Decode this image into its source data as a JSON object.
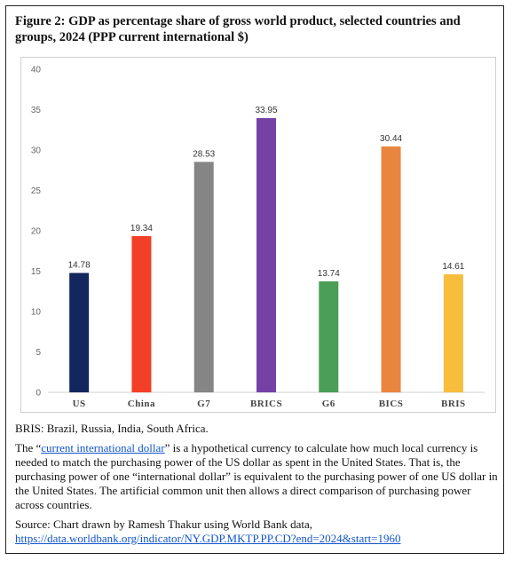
{
  "figure": {
    "title": "Figure 2: GDP as percentage share of gross world product, selected countries and groups, 2024 (PPP current international $)"
  },
  "notes": {
    "bris_note": "BRIS: Brazil, Russia, India, South Africa.",
    "definition_prefix": "The “",
    "definition_link": "current international dollar",
    "definition_suffix": "” is a hypothetical currency to calculate how much local currency is needed to match the purchasing power of the US dollar as spent in the United States. That is, the purchasing power of one “international dollar” is equivalent to the purchasing power of one US dollar in the United States. The artificial common unit then allows a direct comparison of purchasing power across countries.",
    "source_text": "Source: Chart drawn by Ramesh Thakur using World Bank data,",
    "source_url": "https://data.worldbank.org/indicator/NY.GDP.MKTP.PP.CD?end=2024&start=1960"
  },
  "chart_data": {
    "type": "bar",
    "categories": [
      "US",
      "China",
      "G7",
      "BRICS",
      "G6",
      "BICS",
      "BRIS"
    ],
    "values": [
      14.78,
      19.34,
      28.53,
      33.95,
      13.74,
      30.44,
      14.61
    ],
    "value_labels": [
      "14.78",
      "19.34",
      "28.53",
      "33.95",
      "13.74",
      "30.44",
      "14.61"
    ],
    "colors": [
      "#13275e",
      "#f43f27",
      "#858585",
      "#7442a7",
      "#4b9e57",
      "#ea853f",
      "#f7bd3d"
    ],
    "ylim": [
      0,
      40
    ],
    "yticks": [
      0,
      5,
      10,
      15,
      20,
      25,
      30,
      35,
      40
    ],
    "grid": false,
    "legend": "none"
  }
}
